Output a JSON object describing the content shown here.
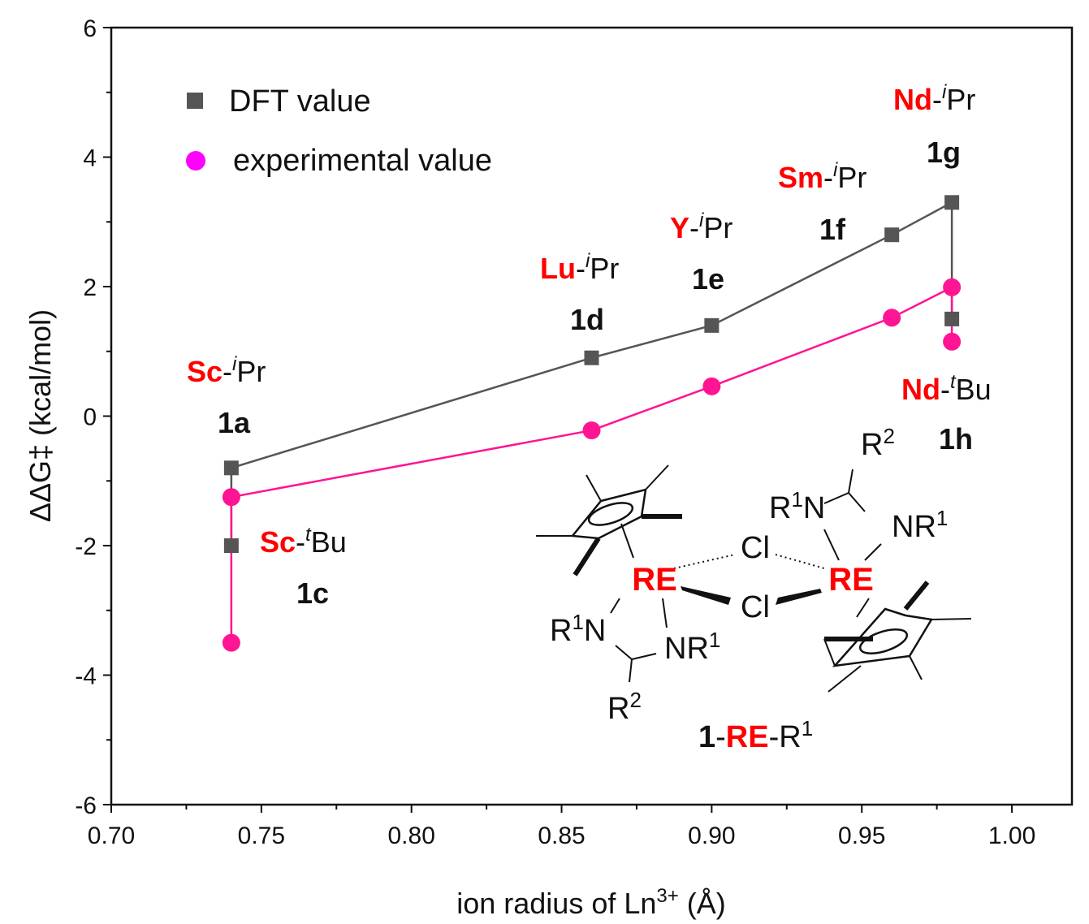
{
  "chart_data": {
    "type": "line",
    "title": "",
    "xlabel": "ion radius of Ln",
    "xlabel_sup": "3+",
    "xlabel_unit": " (Å)",
    "ylabel": "ΔΔG‡ (kcal/mol)",
    "xlim": [
      0.7,
      1.02
    ],
    "ylim": [
      -6,
      6
    ],
    "x_ticks": [
      "0.70",
      "0.75",
      "0.80",
      "0.85",
      "0.90",
      "0.95",
      "1.00"
    ],
    "y_ticks": [
      "-6",
      "-4",
      "-2",
      "0",
      "2",
      "4",
      "6"
    ],
    "grid": false,
    "legend_position": "top-left",
    "series": [
      {
        "name": "DFT value",
        "marker": "square",
        "color": "#555555",
        "points": [
          [
            0.74,
            -2.0
          ],
          [
            0.74,
            -0.8
          ],
          [
            0.86,
            0.9
          ],
          [
            0.9,
            1.4
          ],
          [
            0.96,
            2.8
          ],
          [
            0.98,
            3.3
          ],
          [
            0.98,
            1.5
          ]
        ]
      },
      {
        "name": "experimental value",
        "marker": "circle",
        "color": "#ff1493",
        "legend_color": "#ff00ff",
        "points": [
          [
            0.74,
            -3.5
          ],
          [
            0.74,
            -1.25
          ],
          [
            0.86,
            -0.22
          ],
          [
            0.9,
            0.46
          ],
          [
            0.96,
            1.52
          ],
          [
            0.98,
            1.99
          ],
          [
            0.98,
            1.15
          ]
        ]
      }
    ],
    "annotations": [
      {
        "metal": "Sc",
        "sup": "i",
        "group": "Pr",
        "id": "1a"
      },
      {
        "metal": "Sc",
        "sup": "t",
        "group": "Bu",
        "id": "1c"
      },
      {
        "metal": "Lu",
        "sup": "i",
        "group": "Pr",
        "id": "1d"
      },
      {
        "metal": "Y",
        "sup": "i",
        "group": "Pr",
        "id": "1e"
      },
      {
        "metal": "Sm",
        "sup": "i",
        "group": "Pr",
        "id": "1f"
      },
      {
        "metal": "Nd",
        "sup": "i",
        "group": "Pr",
        "id": "1g"
      },
      {
        "metal": "Nd",
        "sup": "t",
        "group": "Bu",
        "id": "1h"
      }
    ]
  },
  "structure": {
    "metal_label": "RE",
    "cl": "Cl",
    "r2": "R",
    "r2_sup": "2",
    "r1n_pre": "R",
    "r1_sup": "1",
    "n": "N",
    "caption_num": "1",
    "caption_metal": "RE",
    "caption_r": "R",
    "caption_sup": "1"
  }
}
